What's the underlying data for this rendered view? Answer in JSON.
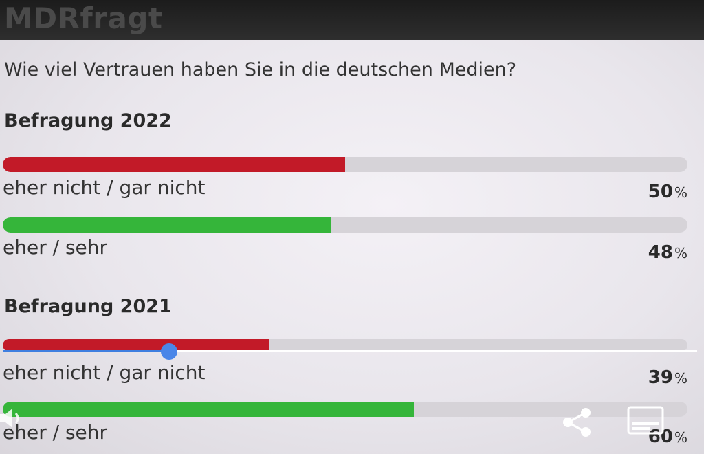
{
  "header": {
    "brand": "MDRfragt"
  },
  "question": "Wie viel Vertrauen haben Sie in die deutschen Medien?",
  "polls": [
    {
      "title": "Befragung 2022",
      "results": [
        {
          "label": "eher nicht / gar nicht",
          "value": 50,
          "display": "50",
          "unit": "%",
          "color": "#c21a28"
        },
        {
          "label": "eher / sehr",
          "value": 48,
          "display": "48",
          "unit": "%",
          "color": "#35b53a"
        }
      ]
    },
    {
      "title": "Befragung 2021",
      "results": [
        {
          "label": "eher nicht / gar nicht",
          "value": 39,
          "display": "39",
          "unit": "%",
          "color": "#c21a28"
        },
        {
          "label": "eher / sehr",
          "value": 60,
          "display": "60",
          "unit": "%",
          "color": "#35b53a"
        }
      ]
    }
  ],
  "video_controls": {
    "seek_progress_fraction": 0.24,
    "icons": [
      "volume-icon",
      "share-icon",
      "captions-icon"
    ]
  }
}
